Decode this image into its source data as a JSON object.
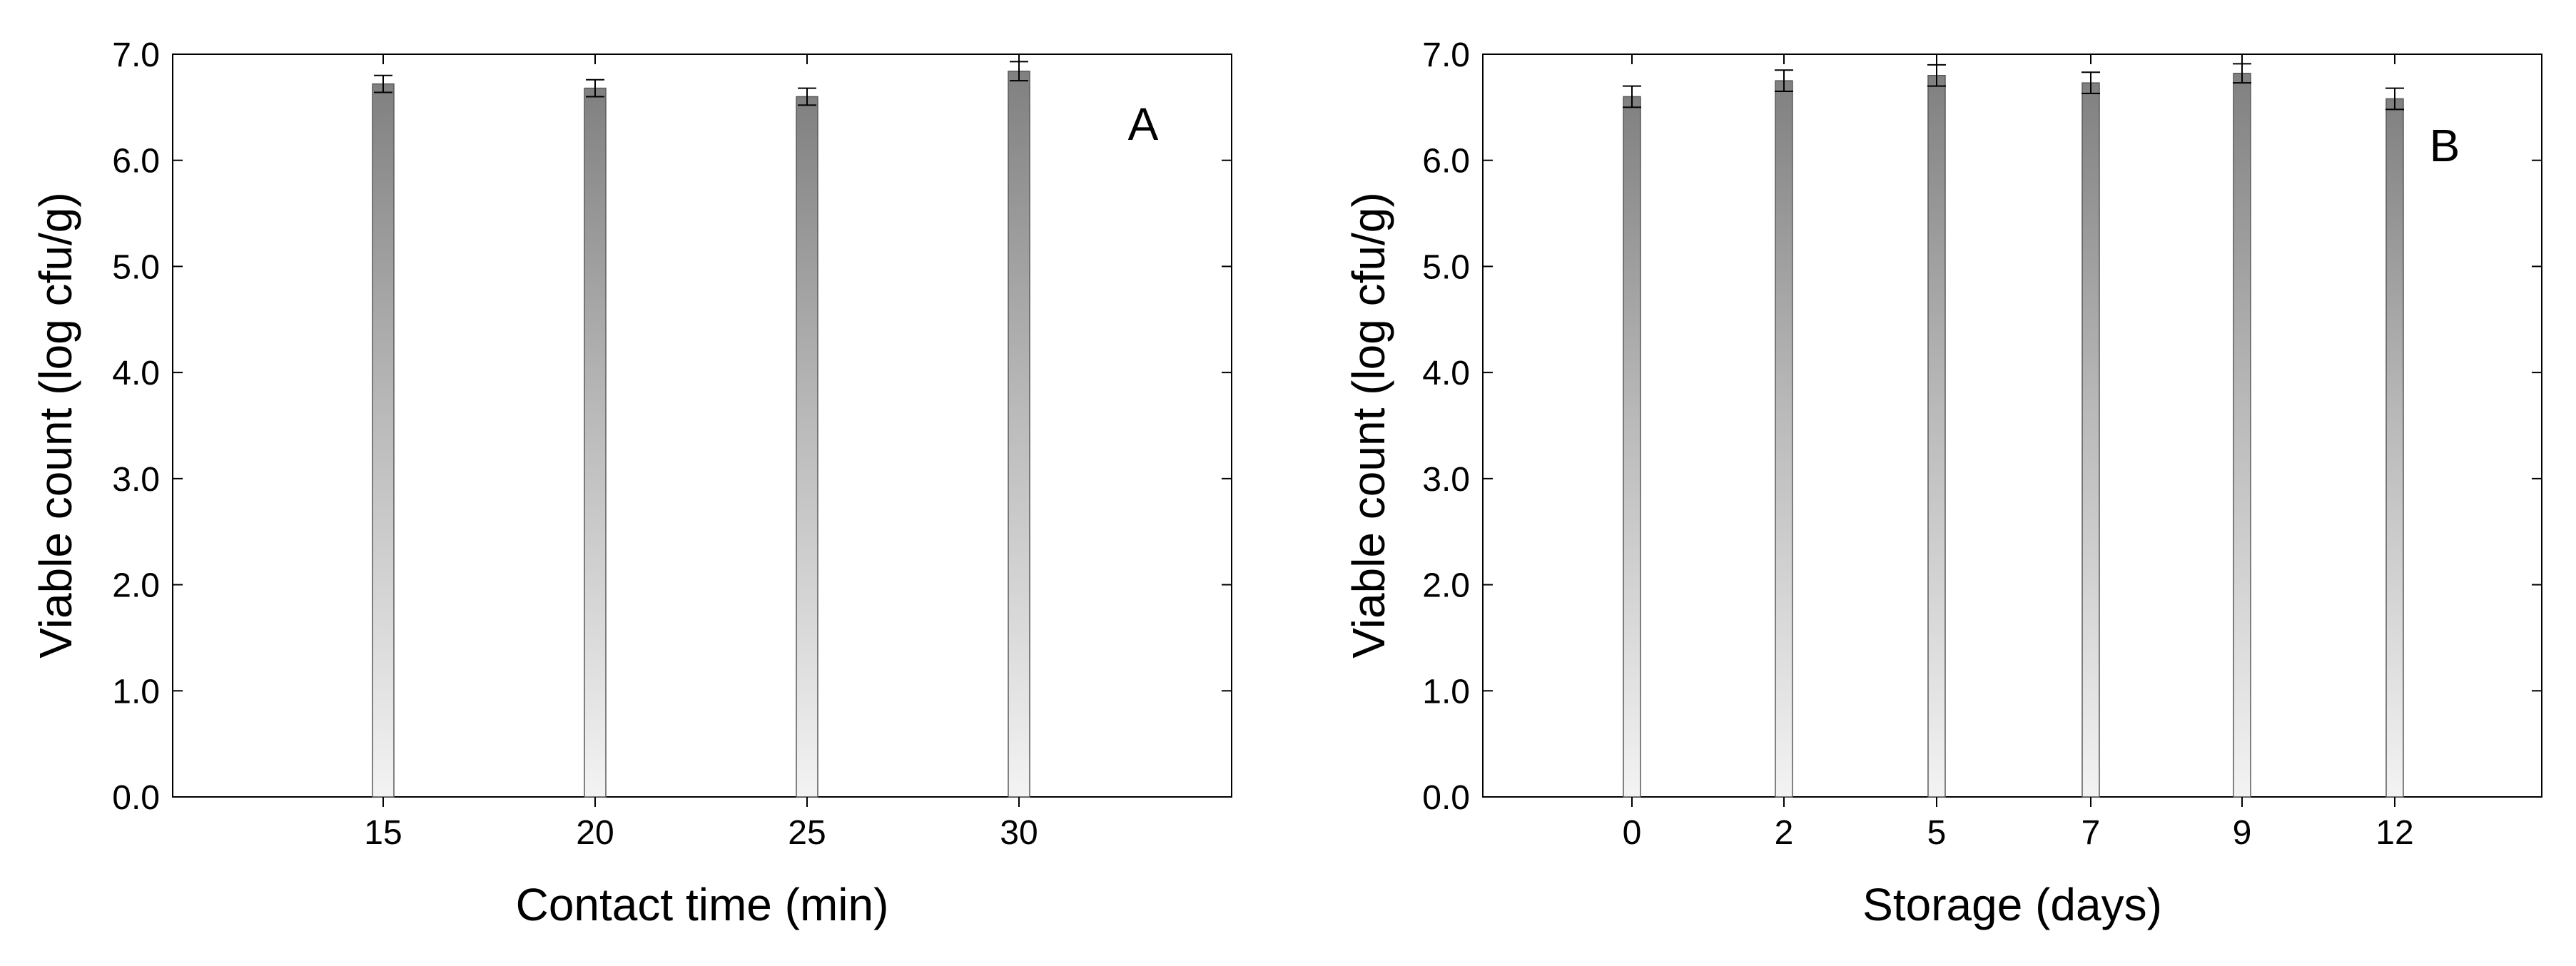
{
  "chart_data": [
    {
      "type": "bar",
      "panel_label": "A",
      "categories": [
        "15",
        "20",
        "25",
        "30"
      ],
      "values": [
        6.72,
        6.68,
        6.6,
        6.84
      ],
      "error": [
        0.08,
        0.08,
        0.08,
        0.09
      ],
      "xlabel": "Contact time (min)",
      "ylabel": "Viable count (log cfu/g)",
      "ylim": [
        0,
        7.0
      ],
      "yticks": [
        "0.0",
        "1.0",
        "2.0",
        "3.0",
        "4.0",
        "5.0",
        "6.0",
        "7.0"
      ],
      "grid": false,
      "bar_color": "#8a8a8a"
    },
    {
      "type": "bar",
      "panel_label": "B",
      "categories": [
        "0",
        "2",
        "5",
        "7",
        "9",
        "12"
      ],
      "values": [
        6.6,
        6.75,
        6.8,
        6.73,
        6.82,
        6.58
      ],
      "error": [
        0.1,
        0.1,
        0.1,
        0.1,
        0.09,
        0.1
      ],
      "xlabel": "Storage (days)",
      "ylabel": "Viable count (log cfu/g)",
      "ylim": [
        0,
        7.0
      ],
      "yticks": [
        "0.0",
        "1.0",
        "2.0",
        "3.0",
        "4.0",
        "5.0",
        "6.0",
        "7.0"
      ],
      "grid": false,
      "bar_color": "#8a8a8a"
    }
  ]
}
